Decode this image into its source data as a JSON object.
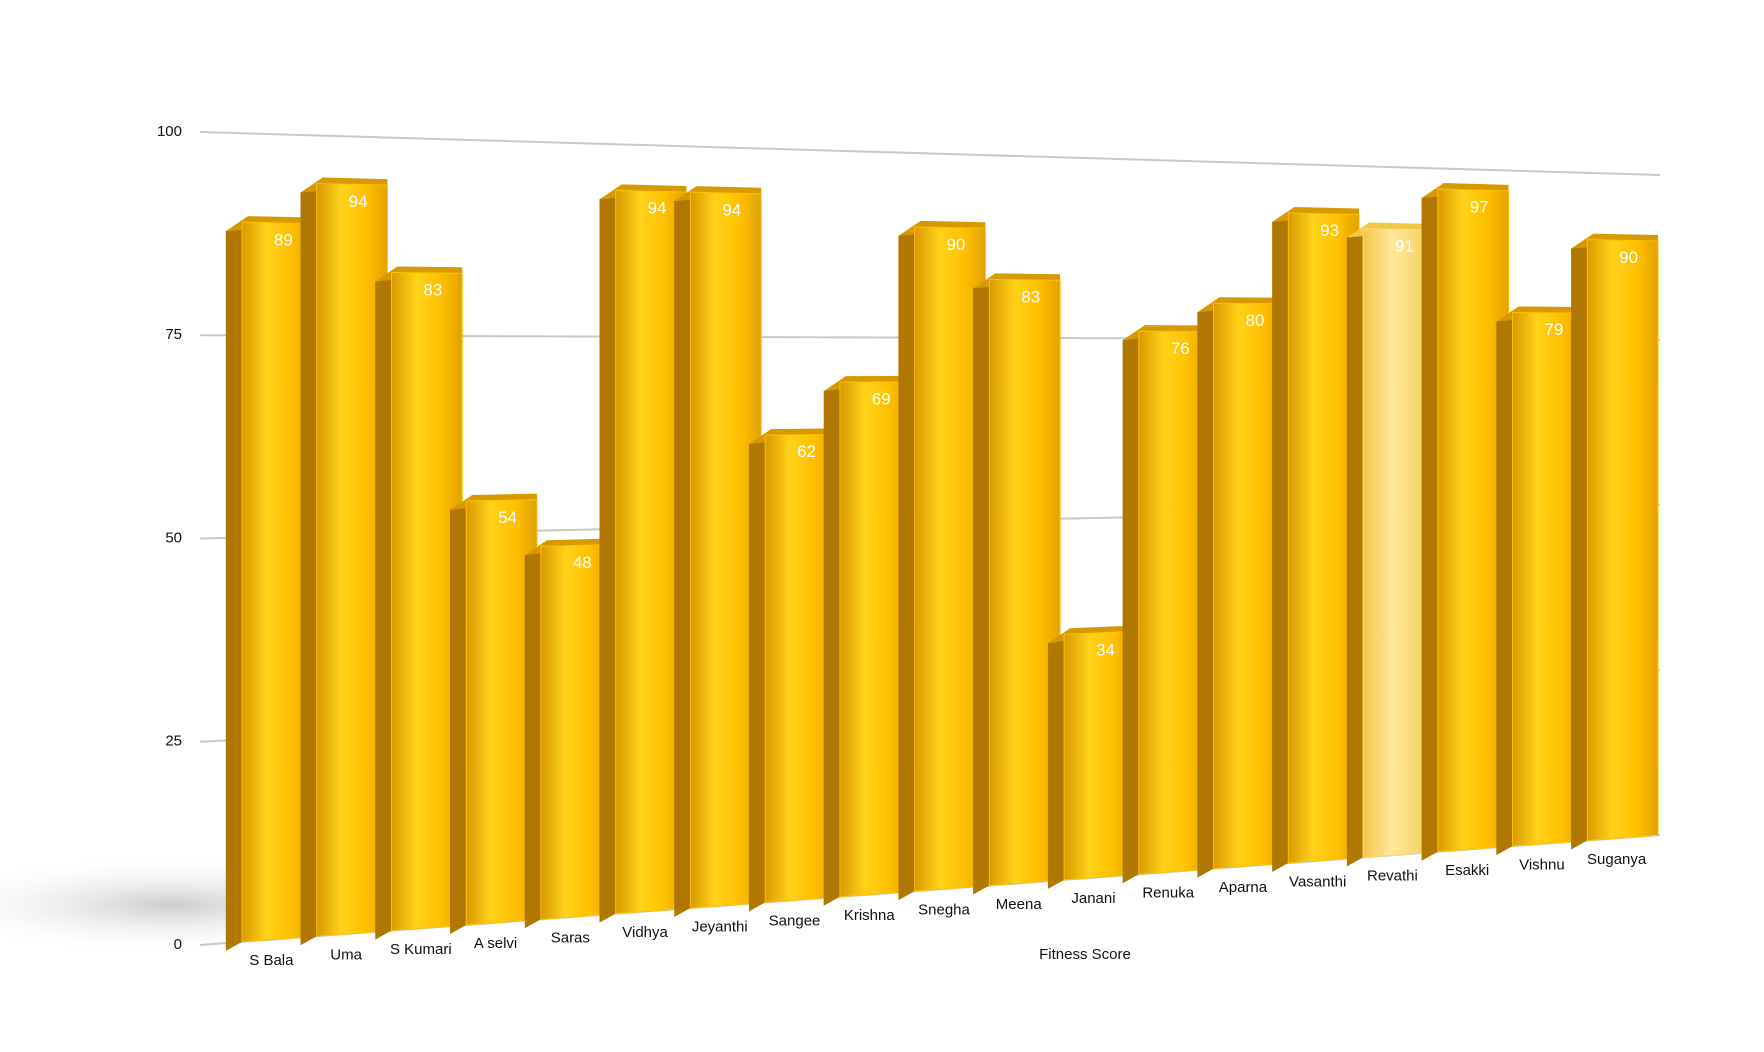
{
  "chart_data": {
    "type": "bar3d",
    "x_label": "Fitness Score",
    "categories": [
      "S Bala",
      "Uma",
      "S Kumari",
      "A selvi",
      "Saras",
      "Vidhya",
      "Jeyanthi",
      "Sangee",
      "Krishna",
      "Snegha",
      "Meena",
      "Janani",
      "Renuka",
      "Aparna",
      "Vasanthi",
      "Revathi",
      "Esakki",
      "Vishnu",
      "Suganya"
    ],
    "values": [
      89,
      94,
      83,
      54,
      48,
      94,
      94,
      62,
      69,
      90,
      83,
      34,
      76,
      80,
      93,
      91,
      97,
      79,
      90
    ],
    "color": "#ffc000",
    "highlight_index": 15,
    "highlight_color": "#ffd966",
    "ylim": [
      0,
      100
    ],
    "yticks": [
      0,
      25,
      50,
      75,
      100
    ],
    "grid": true
  }
}
